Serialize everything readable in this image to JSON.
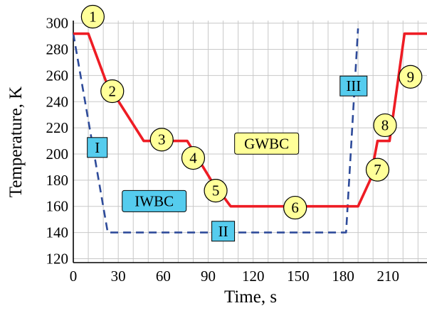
{
  "chart_data": {
    "type": "line",
    "xlabel": "Time, s",
    "ylabel": "Temperature, K",
    "xlim": [
      0,
      236
    ],
    "ylim": [
      117,
      302
    ],
    "x_ticks": [
      0,
      30,
      60,
      90,
      120,
      150,
      180,
      210
    ],
    "y_ticks": [
      120,
      140,
      160,
      180,
      200,
      220,
      240,
      260,
      280,
      300
    ],
    "grid": true,
    "series": [
      {
        "name": "GWBC",
        "color": "#ee1c24",
        "style": "solid",
        "points": [
          [
            0,
            292
          ],
          [
            10,
            292
          ],
          [
            22,
            255
          ],
          [
            47,
            210
          ],
          [
            76,
            210
          ],
          [
            92,
            180
          ],
          [
            105,
            160
          ],
          [
            190,
            160
          ],
          [
            198,
            180
          ],
          [
            203,
            210
          ],
          [
            211,
            210
          ],
          [
            221,
            292
          ],
          [
            236,
            292
          ]
        ]
      },
      {
        "name": "IWBC",
        "color": "#2e4b9a",
        "style": "dashed",
        "points": [
          [
            0,
            292
          ],
          [
            23,
            140
          ],
          [
            182,
            140
          ],
          [
            190,
            296
          ]
        ]
      }
    ],
    "numbered_markers": [
      {
        "label": "1",
        "x": 13,
        "y": 305
      },
      {
        "label": "2",
        "x": 26,
        "y": 248
      },
      {
        "label": "3",
        "x": 59,
        "y": 211
      },
      {
        "label": "4",
        "x": 80,
        "y": 197
      },
      {
        "label": "5",
        "x": 95,
        "y": 172
      },
      {
        "label": "6",
        "x": 148,
        "y": 159
      },
      {
        "label": "7",
        "x": 203,
        "y": 188
      },
      {
        "label": "8",
        "x": 208,
        "y": 222
      },
      {
        "label": "9",
        "x": 225,
        "y": 259
      }
    ],
    "phase_labels": [
      {
        "label": "I",
        "x": 16,
        "y": 205
      },
      {
        "label": "II",
        "x": 100,
        "y": 141
      },
      {
        "label": "III",
        "x": 187,
        "y": 252
      }
    ],
    "series_labels": [
      {
        "label": "GWBC",
        "x": 129,
        "y": 208
      },
      {
        "label": "IWBC",
        "x": 54,
        "y": 164
      }
    ]
  },
  "colors": {
    "grid": "#c8c8c8",
    "marker_fill": "#ffff99",
    "phase_fill": "#55ccee",
    "series_label_fill": "#ffff99"
  }
}
